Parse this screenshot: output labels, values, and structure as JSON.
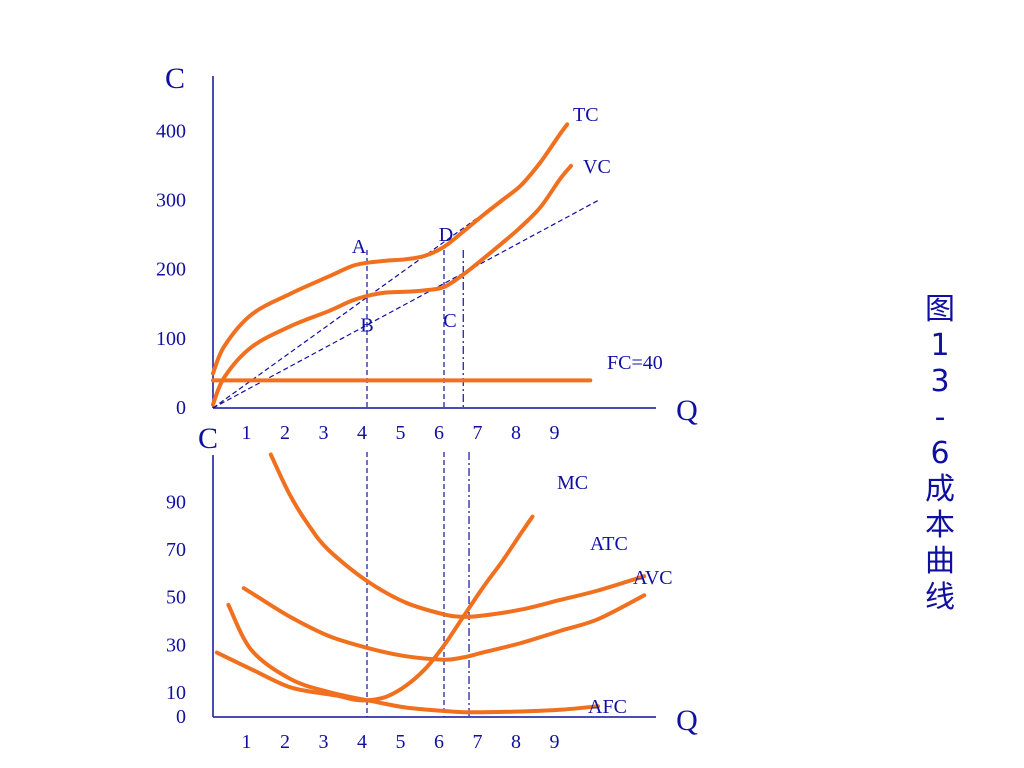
{
  "caption": [
    "图",
    "1",
    "3",
    "-",
    "6",
    "成",
    "本",
    "曲",
    "线"
  ],
  "colors": {
    "axis": "#1010a0",
    "curve": "#f07020"
  },
  "chart_data": [
    {
      "type": "line",
      "panel": "total-cost",
      "ylabel": "C",
      "xlabel": "Q",
      "x_ticks": [
        "1",
        "2",
        "3",
        "4",
        "5",
        "6",
        "7",
        "8",
        "9"
      ],
      "y_ticks": [
        "0",
        "100",
        "200",
        "300",
        "400"
      ],
      "xlim": [
        0,
        11.3
      ],
      "ylim": [
        0,
        480
      ],
      "series": [
        {
          "name": "TC",
          "x": [
            0,
            0.3,
            1,
            2,
            3,
            3.6,
            4,
            4.5,
            5,
            5.5,
            6,
            6.5,
            7,
            7.5,
            8,
            8.5,
            9,
            9.2
          ],
          "y": [
            50,
            90,
            135,
            165,
            190,
            205,
            210,
            213,
            215,
            220,
            233,
            255,
            278,
            300,
            322,
            355,
            395,
            410
          ]
        },
        {
          "name": "VC",
          "x": [
            0,
            0.3,
            1,
            2,
            3,
            3.6,
            4,
            4.5,
            5,
            5.5,
            6,
            6.5,
            7,
            7.5,
            8,
            8.5,
            9,
            9.3
          ],
          "y": [
            5,
            45,
            88,
            118,
            140,
            155,
            162,
            167,
            168,
            170,
            175,
            193,
            215,
            238,
            262,
            290,
            330,
            350
          ]
        },
        {
          "name": "FC=40",
          "x": [
            0,
            9.8
          ],
          "y": [
            40,
            40
          ]
        }
      ],
      "points": [
        {
          "label": "A",
          "x": 4,
          "y": 210
        },
        {
          "label": "B",
          "x": 4,
          "y": 160
        },
        {
          "label": "C",
          "x": 6,
          "y": 175
        },
        {
          "label": "D",
          "x": 6,
          "y": 233
        }
      ],
      "rays": [
        {
          "from": [
            0,
            0
          ],
          "to": [
            8,
            320
          ]
        },
        {
          "from": [
            0,
            0
          ],
          "to": [
            10,
            300
          ]
        }
      ],
      "vlines": [
        {
          "x": 4,
          "style": "dashed"
        },
        {
          "x": 6,
          "style": "dashed"
        },
        {
          "x": 6.5,
          "style": "dashdot"
        }
      ]
    },
    {
      "type": "line",
      "panel": "unit-cost",
      "ylabel": "C",
      "xlabel": "Q",
      "x_ticks": [
        "1",
        "2",
        "3",
        "4",
        "5",
        "6",
        "7",
        "8",
        "9"
      ],
      "y_ticks": [
        "0",
        "10",
        "30",
        "50",
        "70",
        "90"
      ],
      "y_tick_values": [
        0,
        10,
        30,
        50,
        70,
        90
      ],
      "xlim": [
        0,
        11.3
      ],
      "ylim": [
        0,
        114
      ],
      "series": [
        {
          "name": "ATC",
          "x": [
            1.5,
            2,
            2.5,
            3,
            4,
            5,
            6,
            6.5,
            7,
            8,
            9,
            10,
            11.2
          ],
          "y": [
            110,
            93,
            80,
            70,
            57,
            48,
            43,
            42,
            42.5,
            45,
            49,
            53,
            59
          ]
        },
        {
          "name": "AVC",
          "x": [
            0.8,
            1,
            2,
            3,
            4,
            5,
            6,
            6.5,
            7,
            8,
            9,
            10,
            11.2
          ],
          "y": [
            54,
            52,
            42,
            34,
            29,
            25.5,
            24,
            25,
            27,
            31,
            36,
            41,
            51
          ]
        },
        {
          "name": "MC",
          "x": [
            3,
            3.6,
            4,
            4.5,
            5,
            5.5,
            6,
            6.5,
            7,
            7.5,
            8,
            8.3
          ],
          "y": [
            10,
            7.5,
            7,
            8.5,
            13,
            20,
            30,
            42,
            54,
            65,
            77,
            84
          ]
        },
        {
          "name": "AFC",
          "x": [
            0.1,
            1,
            2,
            3,
            4,
            5,
            6,
            6.5,
            7,
            8,
            9,
            10
          ],
          "y": [
            27,
            20,
            12.5,
            9.5,
            7,
            4,
            2.5,
            2,
            2,
            2.3,
            3,
            4.5
          ]
        },
        {
          "name": "",
          "x": [
            0.4,
            1,
            2,
            3,
            4
          ],
          "y": [
            47,
            28,
            16,
            10.5,
            7
          ]
        }
      ],
      "vlines": [
        {
          "x": 4,
          "style": "dashed"
        },
        {
          "x": 6,
          "style": "dashed"
        },
        {
          "x": 6.65,
          "style": "dashdot"
        }
      ]
    }
  ]
}
